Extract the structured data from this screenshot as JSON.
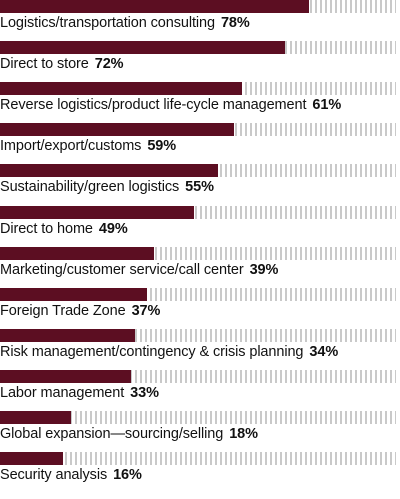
{
  "chart_data": {
    "type": "bar",
    "orientation": "horizontal",
    "xlim": [
      0,
      100
    ],
    "bar_color": "#5c0e22",
    "track_color": "#c9c9c9",
    "categories": [
      "Logistics/transportation consulting",
      "Direct to store",
      "Reverse logistics/product life-cycle management",
      "Import/export/customs",
      "Sustainability/green logistics",
      "Direct to home",
      "Marketing/customer service/call center",
      "Foreign Trade Zone",
      "Risk management/contingency & crisis planning",
      "Labor management",
      "Global expansion—sourcing/selling",
      "Security analysis"
    ],
    "values": [
      78,
      72,
      61,
      59,
      55,
      49,
      39,
      37,
      34,
      33,
      18,
      16
    ],
    "value_labels": [
      "78%",
      "72%",
      "61%",
      "59%",
      "55%",
      "49%",
      "39%",
      "37%",
      "34%",
      "33%",
      "18%",
      "16%"
    ]
  }
}
